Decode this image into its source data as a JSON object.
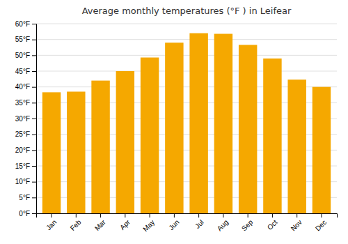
{
  "chart_data": {
    "type": "bar",
    "title": "Average monthly temperatures (°F ) in Leifear",
    "categories": [
      "Jan",
      "Feb",
      "Mar",
      "Apr",
      "May",
      "Jun",
      "Jul",
      "Aug",
      "Sep",
      "Oct",
      "Nov",
      "Dec"
    ],
    "values": [
      38.3,
      38.5,
      42.0,
      45.0,
      49.3,
      54.0,
      57.0,
      56.8,
      53.3,
      49.0,
      42.3,
      40.0
    ],
    "color": "#F5A800",
    "ylim": [
      0,
      60
    ],
    "yticks": [
      {
        "value": 0,
        "label": "0°F"
      },
      {
        "value": 5,
        "label": "5°F"
      },
      {
        "value": 10,
        "label": "10°F"
      },
      {
        "value": 15,
        "label": "15°F"
      },
      {
        "value": 20,
        "label": "20°F"
      },
      {
        "value": 25,
        "label": "25°F"
      },
      {
        "value": 30,
        "label": "30°F"
      },
      {
        "value": 35,
        "label": "35°F"
      },
      {
        "value": 40,
        "label": "40°F"
      },
      {
        "value": 45,
        "label": "45°F"
      },
      {
        "value": 50,
        "label": "50°F"
      },
      {
        "value": 55,
        "label": "55°F"
      },
      {
        "value": 60,
        "label": "60°F"
      }
    ],
    "grid": true
  }
}
